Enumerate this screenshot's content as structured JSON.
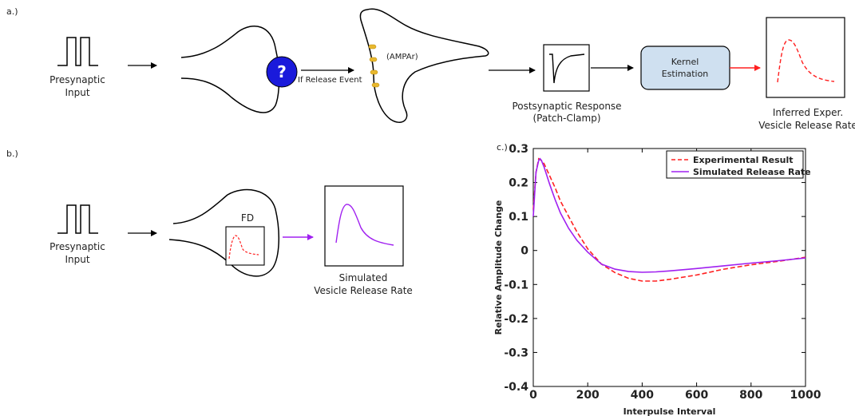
{
  "panels": {
    "a": "a.)",
    "b": "b.)",
    "c": "c.)"
  },
  "row_a": {
    "presynaptic_line1": "Presynaptic",
    "presynaptic_line2": "Input",
    "question_mark": "?",
    "release_event": "If Release Event",
    "ampar": "(AMPAr)",
    "postsynaptic_line1": "Postsynaptic Response",
    "postsynaptic_line2": "(Patch-Clamp)",
    "kernel_line1": "Kernel",
    "kernel_line2": "Estimation",
    "inferred_line1": "Inferred Exper.",
    "inferred_line2": "Vesicle Release Rate"
  },
  "row_b": {
    "presynaptic_line1": "Presynaptic",
    "presynaptic_line2": "Input",
    "fd": "FD",
    "simulated_line1": "Simulated",
    "simulated_line2": "Vesicle Release Rate"
  },
  "colors": {
    "question_circle": "#1a1adb",
    "ampar_receptor": "#e8b82e",
    "kernel_box": "#cfe0f0",
    "experimental": "#ff2020",
    "simulated": "#a020f0",
    "red_arrow": "#ff2020",
    "purple_arrow": "#a020f0"
  },
  "chart_data": {
    "type": "line",
    "xlabel": "Interpulse Interval",
    "ylabel": "Relative Amplitude Change",
    "xlim": [
      0,
      1000
    ],
    "ylim": [
      -0.4,
      0.3
    ],
    "xticks": [
      0,
      200,
      400,
      600,
      800,
      1000
    ],
    "yticks": [
      0.3,
      0.2,
      0.1,
      0,
      -0.1,
      -0.2,
      -0.3,
      -0.4
    ],
    "legend_position": "top-right",
    "series": [
      {
        "name": "Experimental Result",
        "style": "dashed",
        "color": "#ff2020",
        "x": [
          0,
          10,
          20,
          30,
          40,
          60,
          80,
          100,
          130,
          160,
          200,
          250,
          300,
          350,
          400,
          450,
          500,
          600,
          700,
          800,
          900,
          1000
        ],
        "y": [
          0.12,
          0.23,
          0.27,
          0.265,
          0.255,
          0.22,
          0.185,
          0.145,
          0.1,
          0.055,
          0.005,
          -0.04,
          -0.065,
          -0.082,
          -0.09,
          -0.09,
          -0.085,
          -0.072,
          -0.055,
          -0.042,
          -0.032,
          -0.02
        ]
      },
      {
        "name": "Simulated Release Rate",
        "style": "solid",
        "color": "#a020f0",
        "x": [
          0,
          10,
          20,
          25,
          30,
          40,
          60,
          80,
          100,
          130,
          160,
          200,
          250,
          300,
          350,
          400,
          450,
          500,
          600,
          700,
          800,
          900,
          1000
        ],
        "y": [
          0.1,
          0.23,
          0.265,
          0.27,
          0.265,
          0.245,
          0.195,
          0.15,
          0.11,
          0.065,
          0.03,
          -0.005,
          -0.04,
          -0.055,
          -0.062,
          -0.064,
          -0.063,
          -0.06,
          -0.053,
          -0.045,
          -0.037,
          -0.03,
          -0.022
        ]
      }
    ]
  }
}
